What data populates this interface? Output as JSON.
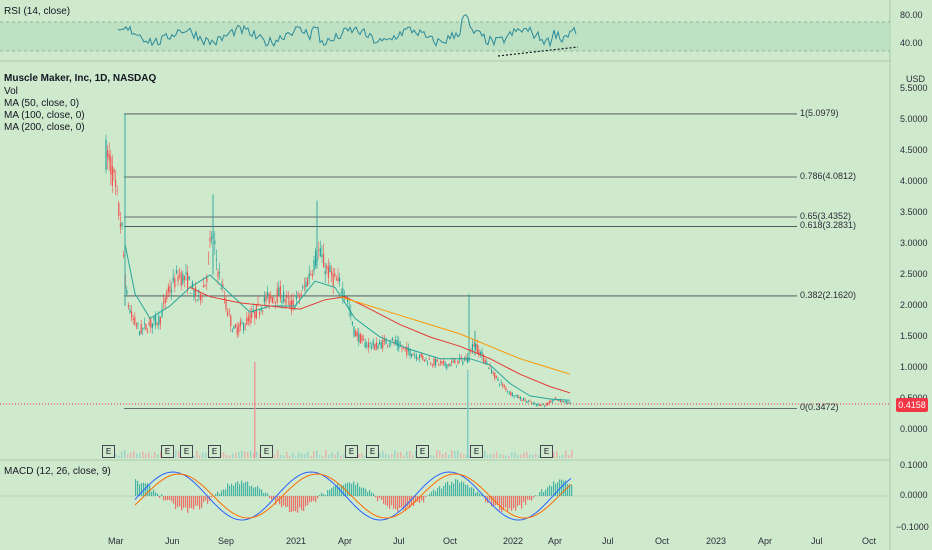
{
  "rsi": {
    "label": "RSI (14, close)",
    "upper_tick": "80.00",
    "lower_tick": "40.00"
  },
  "main": {
    "title": "Muscle Maker, Inc, 1D, NASDAQ",
    "indicators": [
      "Vol",
      "MA (50, close, 0)",
      "MA (100, close, 0)",
      "MA (200, close, 0)"
    ],
    "currency": "USD",
    "price_ticks": [
      "5.5000",
      "5.0000",
      "4.5000",
      "4.0000",
      "3.5000",
      "3.0000",
      "2.5000",
      "2.0000",
      "1.5000",
      "1.0000",
      "0.5000",
      "0.0000"
    ],
    "last_price": "0.4158",
    "fib_levels": [
      {
        "label": "1(5.0979)",
        "value": 5.0979
      },
      {
        "label": "0.786(4.0812)",
        "value": 4.0812
      },
      {
        "label": "0.65(3.4352)",
        "value": 3.4352
      },
      {
        "label": "0.618(3.2831)",
        "value": 3.2831
      },
      {
        "label": "0.382(2.1620)",
        "value": 2.162
      },
      {
        "label": "0(0.3472)",
        "value": 0.3472
      }
    ],
    "earnings_marker": "E"
  },
  "macd": {
    "label": "MACD (12, 26, close, 9)",
    "ticks": [
      "0.1000",
      "0.0000",
      "−0.1000"
    ]
  },
  "x_axis": [
    "Mar",
    "Jun",
    "Sep",
    "2021",
    "Apr",
    "Jul",
    "Oct",
    "2022",
    "Apr",
    "Jul",
    "Oct",
    "2023",
    "Apr",
    "Jul",
    "Oct"
  ],
  "colors": {
    "background": "#cfe9cd",
    "rsi_line": "#2a8a9a",
    "ma50": "#26a69a",
    "ma100": "#e53935",
    "ma200": "#ff9800",
    "up": "#26a69a",
    "down": "#ef5350",
    "price_line": "#f23645"
  }
}
